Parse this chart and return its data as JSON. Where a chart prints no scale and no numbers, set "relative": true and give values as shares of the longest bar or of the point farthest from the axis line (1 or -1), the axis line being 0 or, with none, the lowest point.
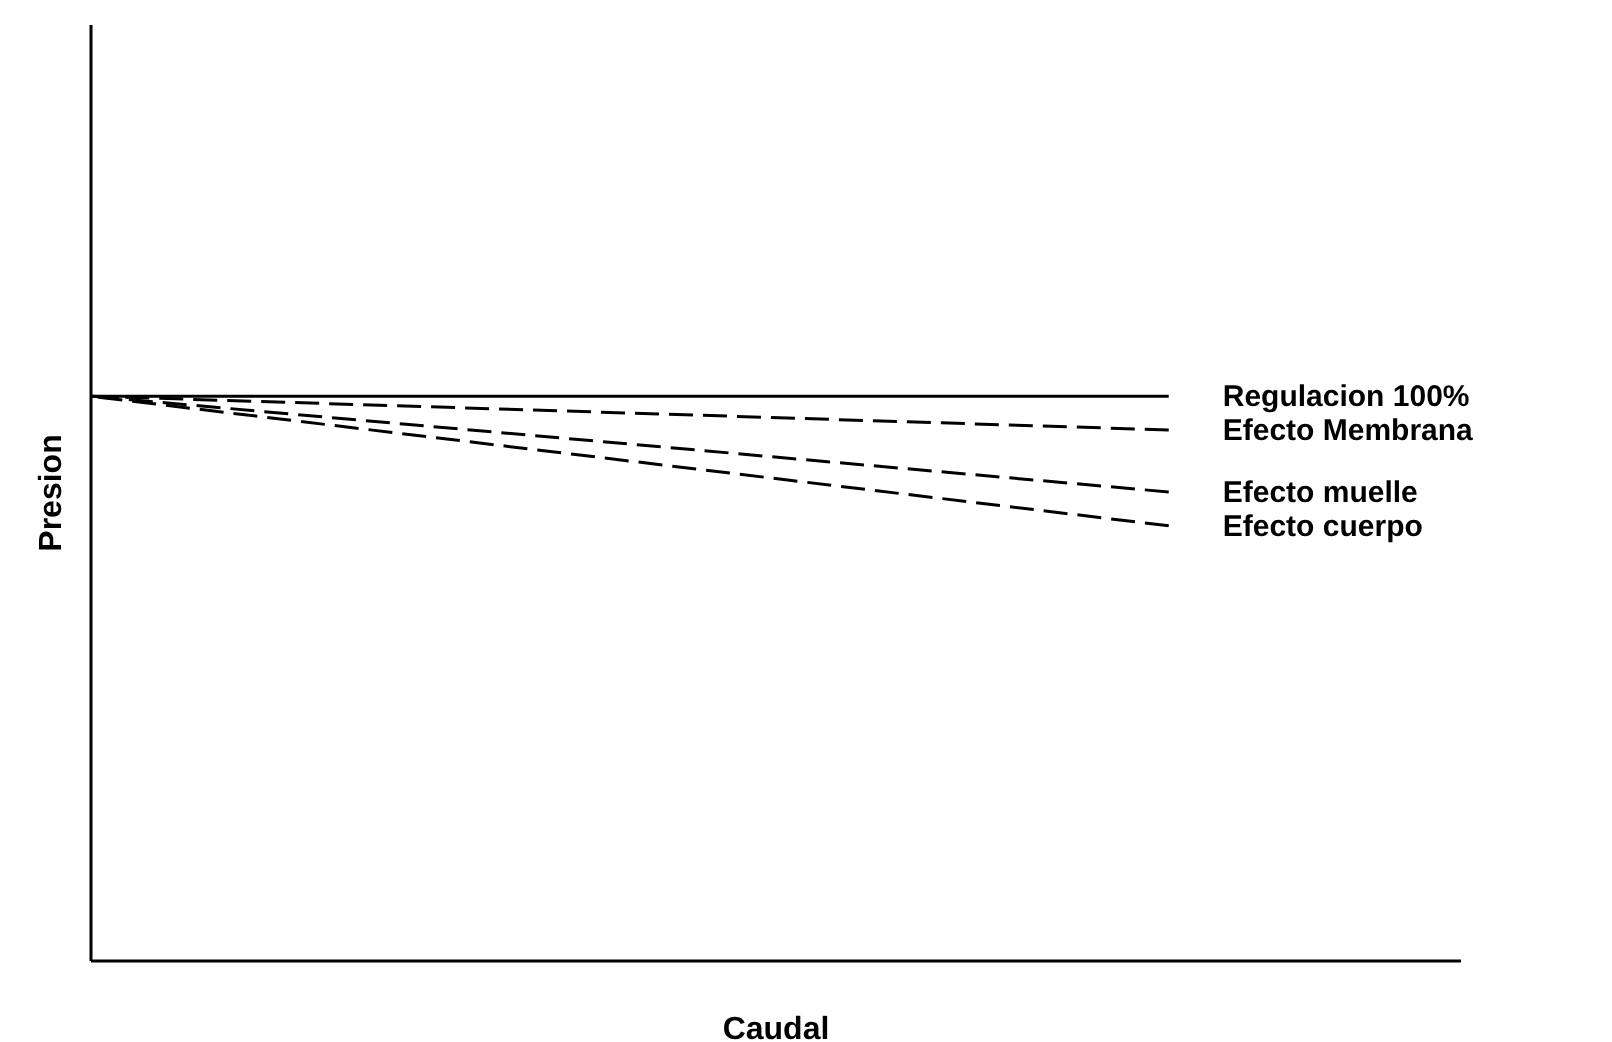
{
  "chart_data": {
    "type": "line",
    "relative": true,
    "xlabel": "Caudal",
    "ylabel": "Presion",
    "categories": [
      null,
      null
    ],
    "legend": false,
    "series": [
      {
        "name": "Regulacion 100%",
        "color": "#000000",
        "line_style": "solid",
        "values": [
          1,
          1
        ]
      },
      {
        "name": "Efecto Membrana",
        "color": "#000000",
        "line_style": "dashed",
        "values": [
          1,
          0.94
        ]
      },
      {
        "name": "Efecto muelle",
        "color": "#000000",
        "line_style": "dashed",
        "values": [
          1,
          0.83
        ]
      },
      {
        "name": "Efecto cuerpo",
        "color": "#000000",
        "line_style": "dashed",
        "values": [
          1,
          0.77
        ]
      }
    ]
  }
}
